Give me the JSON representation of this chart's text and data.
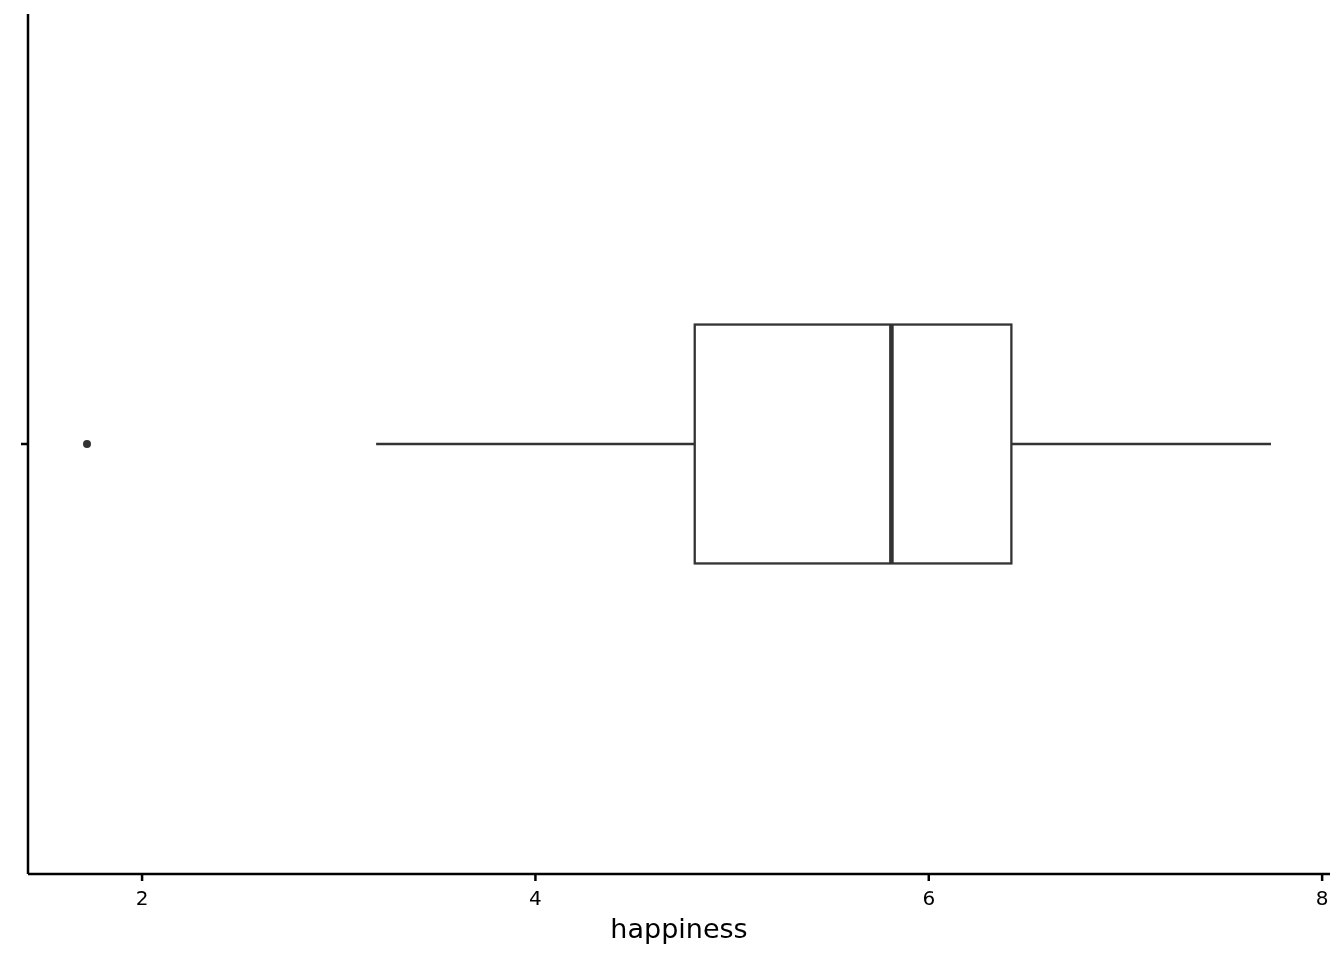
{
  "chart_data": {
    "type": "box",
    "orientation": "horizontal",
    "categories": [
      null
    ],
    "boxes": [
      {
        "low": 3.19,
        "q1": 4.81,
        "median": 5.81,
        "q3": 6.42,
        "high": 7.74,
        "outliers": [
          1.72
        ]
      }
    ],
    "color": "#333333",
    "xlim": [
      1.42,
      8.04
    ],
    "xticks": [
      2,
      4,
      6,
      8
    ],
    "xlabel": "happiness"
  }
}
